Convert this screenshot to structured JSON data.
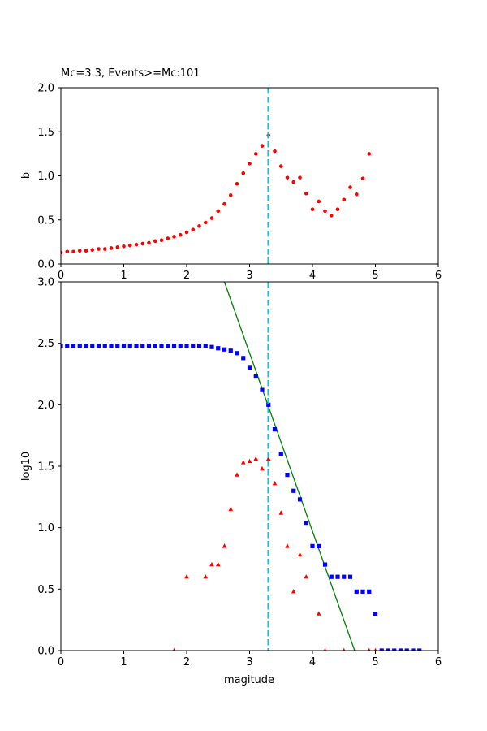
{
  "chart_data": [
    {
      "type": "scatter",
      "title": "Mc=3.3, Events>=Mc:101",
      "xlabel": "",
      "ylabel": "b",
      "xlim": [
        0,
        6
      ],
      "ylim": [
        0,
        2.0
      ],
      "x_ticks": [
        "0",
        "1",
        "2",
        "3",
        "4",
        "5",
        "6"
      ],
      "y_ticks": [
        "0.0",
        "0.5",
        "1.0",
        "1.5",
        "2.0"
      ],
      "mc_line": 3.3,
      "series": [
        {
          "marker": "circle",
          "color": "#ff0000",
          "x": [
            0.0,
            0.1,
            0.2,
            0.3,
            0.4,
            0.5,
            0.6,
            0.7,
            0.8,
            0.9,
            1.0,
            1.1,
            1.2,
            1.3,
            1.4,
            1.5,
            1.6,
            1.7,
            1.8,
            1.9,
            2.0,
            2.1,
            2.2,
            2.3,
            2.4,
            2.5,
            2.6,
            2.7,
            2.8,
            2.9,
            3.0,
            3.1,
            3.2,
            3.3,
            3.4,
            3.5,
            3.6,
            3.7,
            3.8,
            3.9,
            4.0,
            4.1,
            4.2,
            4.3,
            4.4,
            4.5,
            4.6,
            4.7,
            4.8,
            4.9
          ],
          "y": [
            0.13,
            0.14,
            0.14,
            0.15,
            0.15,
            0.16,
            0.17,
            0.17,
            0.18,
            0.19,
            0.2,
            0.21,
            0.22,
            0.23,
            0.24,
            0.26,
            0.27,
            0.29,
            0.31,
            0.33,
            0.36,
            0.39,
            0.43,
            0.47,
            0.52,
            0.6,
            0.68,
            0.78,
            0.91,
            1.03,
            1.14,
            1.25,
            1.34,
            1.46,
            1.28,
            1.11,
            0.98,
            0.93,
            0.98,
            0.8,
            0.62,
            0.71,
            0.6,
            0.55,
            0.62,
            0.73,
            0.87,
            0.79,
            0.97,
            1.25
          ]
        }
      ]
    },
    {
      "type": "scatter",
      "title": "",
      "xlabel": "magitude",
      "ylabel": "log10",
      "xlim": [
        0,
        6
      ],
      "ylim": [
        0,
        3.0
      ],
      "x_ticks": [
        "0",
        "1",
        "2",
        "3",
        "4",
        "5",
        "6"
      ],
      "y_ticks": [
        "0.0",
        "0.5",
        "1.0",
        "1.5",
        "2.0",
        "2.5",
        "3.0"
      ],
      "mc_line": 3.3,
      "fit_line": {
        "color": "#008000",
        "points": [
          [
            2.6,
            3.0
          ],
          [
            4.67,
            0.0
          ]
        ]
      },
      "series": [
        {
          "marker": "square",
          "color": "#0000ff",
          "x": [
            0.0,
            0.1,
            0.2,
            0.3,
            0.4,
            0.5,
            0.6,
            0.7,
            0.8,
            0.9,
            1.0,
            1.1,
            1.2,
            1.3,
            1.4,
            1.5,
            1.6,
            1.7,
            1.8,
            1.9,
            2.0,
            2.1,
            2.2,
            2.3,
            2.4,
            2.5,
            2.6,
            2.7,
            2.8,
            2.9,
            3.0,
            3.1,
            3.2,
            3.3,
            3.4,
            3.5,
            3.6,
            3.7,
            3.8,
            3.9,
            4.0,
            4.1,
            4.2,
            4.3,
            4.4,
            4.5,
            4.6,
            4.7,
            4.8,
            4.9,
            5.0,
            5.1,
            5.2,
            5.3,
            5.4,
            5.5,
            5.6,
            5.7
          ],
          "y": [
            2.48,
            2.48,
            2.48,
            2.48,
            2.48,
            2.48,
            2.48,
            2.48,
            2.48,
            2.48,
            2.48,
            2.48,
            2.48,
            2.48,
            2.48,
            2.48,
            2.48,
            2.48,
            2.48,
            2.48,
            2.48,
            2.48,
            2.48,
            2.48,
            2.47,
            2.46,
            2.45,
            2.44,
            2.42,
            2.38,
            2.3,
            2.23,
            2.12,
            2.0,
            1.8,
            1.6,
            1.43,
            1.3,
            1.23,
            1.04,
            0.85,
            0.85,
            0.7,
            0.6,
            0.6,
            0.6,
            0.6,
            0.48,
            0.48,
            0.48,
            0.3,
            0.0,
            0.0,
            0.0,
            0.0,
            0.0,
            0.0,
            0.0
          ]
        },
        {
          "marker": "triangle",
          "color": "#ff0000",
          "x": [
            1.8,
            2.0,
            2.3,
            2.4,
            2.5,
            2.6,
            2.7,
            2.8,
            2.9,
            3.0,
            3.1,
            3.2,
            3.3,
            3.4,
            3.5,
            3.6,
            3.7,
            3.8,
            3.9,
            4.1,
            4.2,
            4.5,
            4.9,
            5.0
          ],
          "y": [
            0.0,
            0.6,
            0.6,
            0.7,
            0.7,
            0.85,
            1.15,
            1.43,
            1.53,
            1.54,
            1.56,
            1.48,
            1.56,
            1.36,
            1.12,
            0.85,
            0.48,
            0.78,
            0.6,
            0.3,
            0.0,
            0.0,
            0.0,
            0.0
          ]
        }
      ]
    }
  ]
}
